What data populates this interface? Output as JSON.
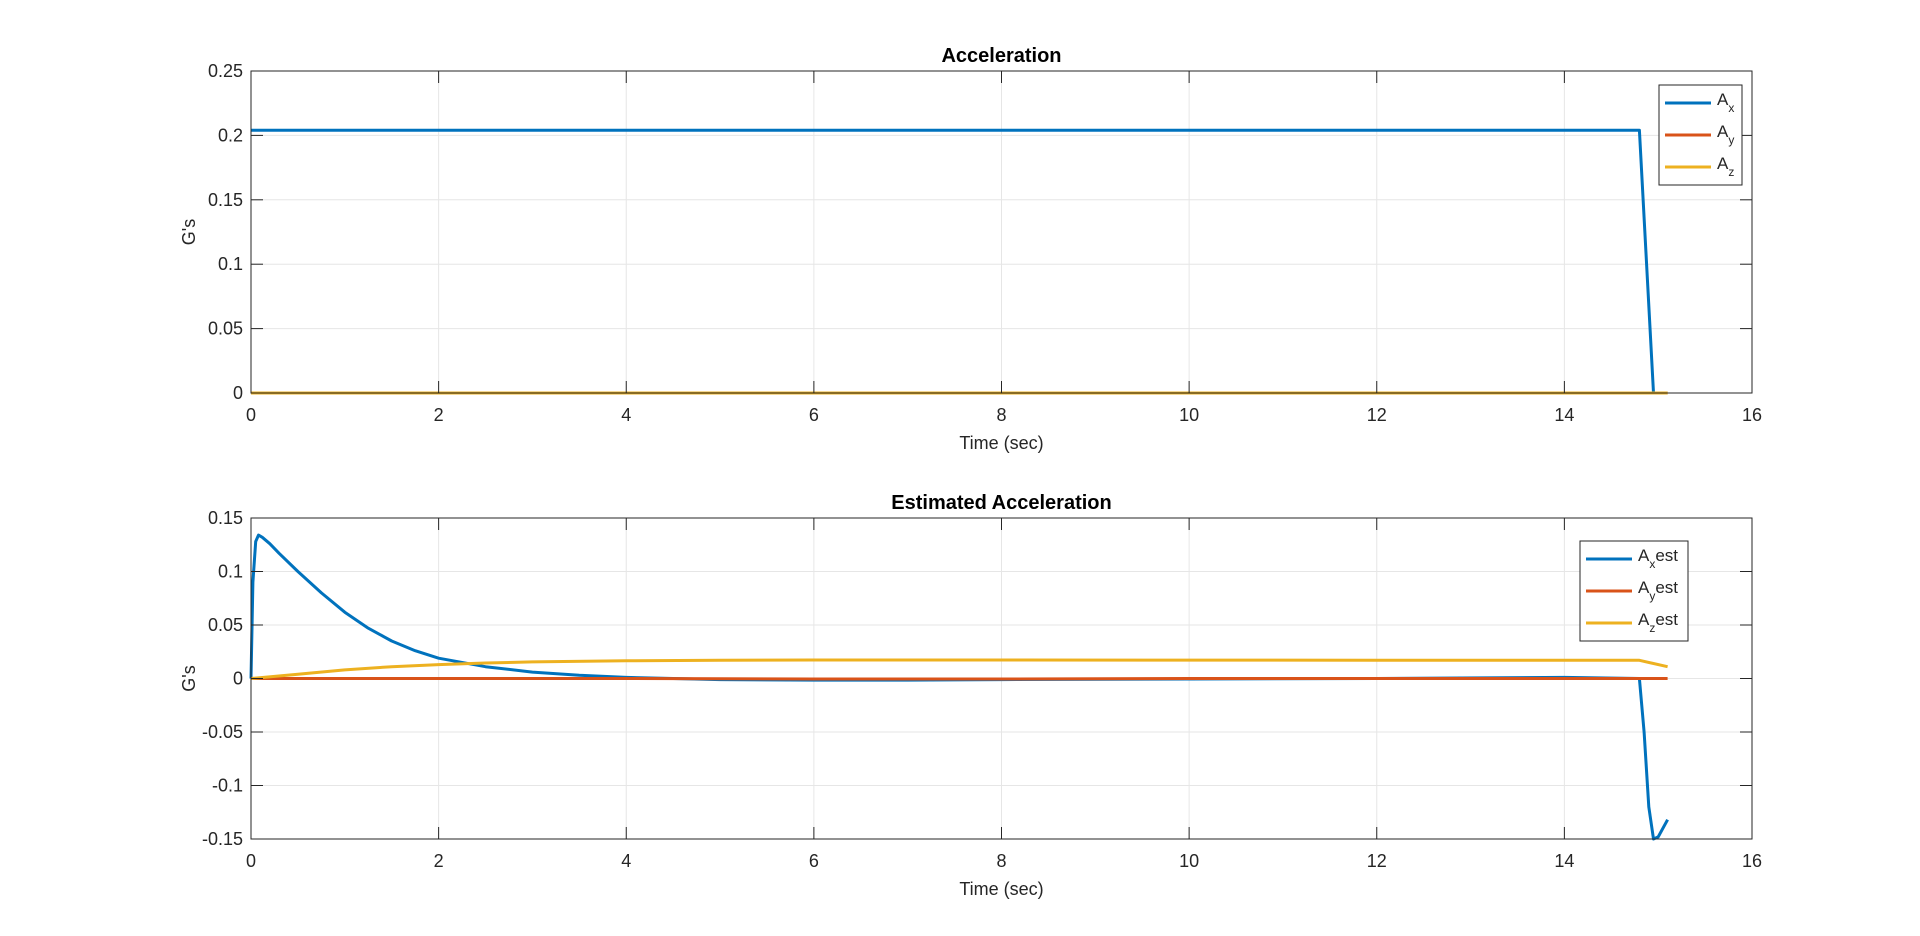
{
  "chart_data": [
    {
      "type": "line",
      "title": "Acceleration",
      "xlabel": "Time (sec)",
      "ylabel": "G's",
      "xlim": [
        0,
        16
      ],
      "ylim": [
        0,
        0.25
      ],
      "xticks": [
        0,
        2,
        4,
        6,
        8,
        10,
        12,
        14,
        16
      ],
      "yticks": [
        0,
        0.05,
        0.1,
        0.15,
        0.2,
        0.25
      ],
      "ytick_labels": [
        "0",
        "0.05",
        "0.1",
        "0.15",
        "0.2",
        "0.25"
      ],
      "grid": true,
      "legend": "top-right",
      "series": [
        {
          "name": "A",
          "sub": "x",
          "suffix": "",
          "color": "#0072BD",
          "x": [
            0,
            14.8,
            14.95
          ],
          "y": [
            0.204,
            0.204,
            0
          ]
        },
        {
          "name": "A",
          "sub": "y",
          "suffix": "",
          "color": "#D95319",
          "x": [
            0,
            15.1
          ],
          "y": [
            0,
            0
          ]
        },
        {
          "name": "A",
          "sub": "z",
          "suffix": "",
          "color": "#EDB120",
          "x": [
            0,
            15.1
          ],
          "y": [
            0,
            0
          ]
        }
      ]
    },
    {
      "type": "line",
      "title": "Estimated Acceleration",
      "xlabel": "Time (sec)",
      "ylabel": "G's",
      "xlim": [
        0,
        16
      ],
      "ylim": [
        -0.15,
        0.15
      ],
      "xticks": [
        0,
        2,
        4,
        6,
        8,
        10,
        12,
        14,
        16
      ],
      "yticks": [
        -0.15,
        -0.1,
        -0.05,
        0,
        0.05,
        0.1,
        0.15
      ],
      "ytick_labels": [
        "-0.15",
        "-0.1",
        "-0.05",
        "0",
        "0.05",
        "0.1",
        "0.15"
      ],
      "grid": true,
      "legend": "top-right",
      "series": [
        {
          "name": "A",
          "sub": "x",
          "suffix": "est",
          "color": "#0072BD",
          "x": [
            0,
            0.02,
            0.05,
            0.08,
            0.12,
            0.2,
            0.3,
            0.5,
            0.75,
            1.0,
            1.25,
            1.5,
            1.75,
            2.0,
            2.5,
            3.0,
            3.5,
            4.0,
            4.5,
            5.0,
            6.0,
            7.0,
            8.0,
            10.0,
            12.0,
            14.0,
            14.8,
            14.85,
            14.9,
            14.95,
            15.0,
            15.1
          ],
          "y": [
            0,
            0.09,
            0.128,
            0.134,
            0.132,
            0.126,
            0.117,
            0.1,
            0.08,
            0.062,
            0.047,
            0.035,
            0.026,
            0.019,
            0.011,
            0.006,
            0.003,
            0.001,
            0.0,
            -0.001,
            -0.0015,
            -0.0015,
            -0.001,
            -0.0005,
            0.0,
            0.001,
            0.0,
            -0.05,
            -0.12,
            -0.15,
            -0.148,
            -0.132
          ]
        },
        {
          "name": "A",
          "sub": "y",
          "suffix": "est",
          "color": "#D95319",
          "x": [
            0,
            2,
            4,
            6,
            8,
            10,
            12,
            14,
            15.1
          ],
          "y": [
            0,
            0,
            0,
            -0.0005,
            -0.0005,
            0,
            0,
            0,
            0
          ]
        },
        {
          "name": "A",
          "sub": "z",
          "suffix": "est",
          "color": "#EDB120",
          "x": [
            0,
            0.5,
            1.0,
            1.5,
            2.0,
            2.5,
            3.0,
            4.0,
            5.0,
            6.0,
            8.0,
            10.0,
            12.0,
            14.0,
            14.8,
            15.1
          ],
          "y": [
            0,
            0.004,
            0.008,
            0.011,
            0.013,
            0.0145,
            0.0155,
            0.0165,
            0.017,
            0.0173,
            0.0173,
            0.0172,
            0.0171,
            0.017,
            0.017,
            0.011
          ]
        }
      ]
    }
  ]
}
